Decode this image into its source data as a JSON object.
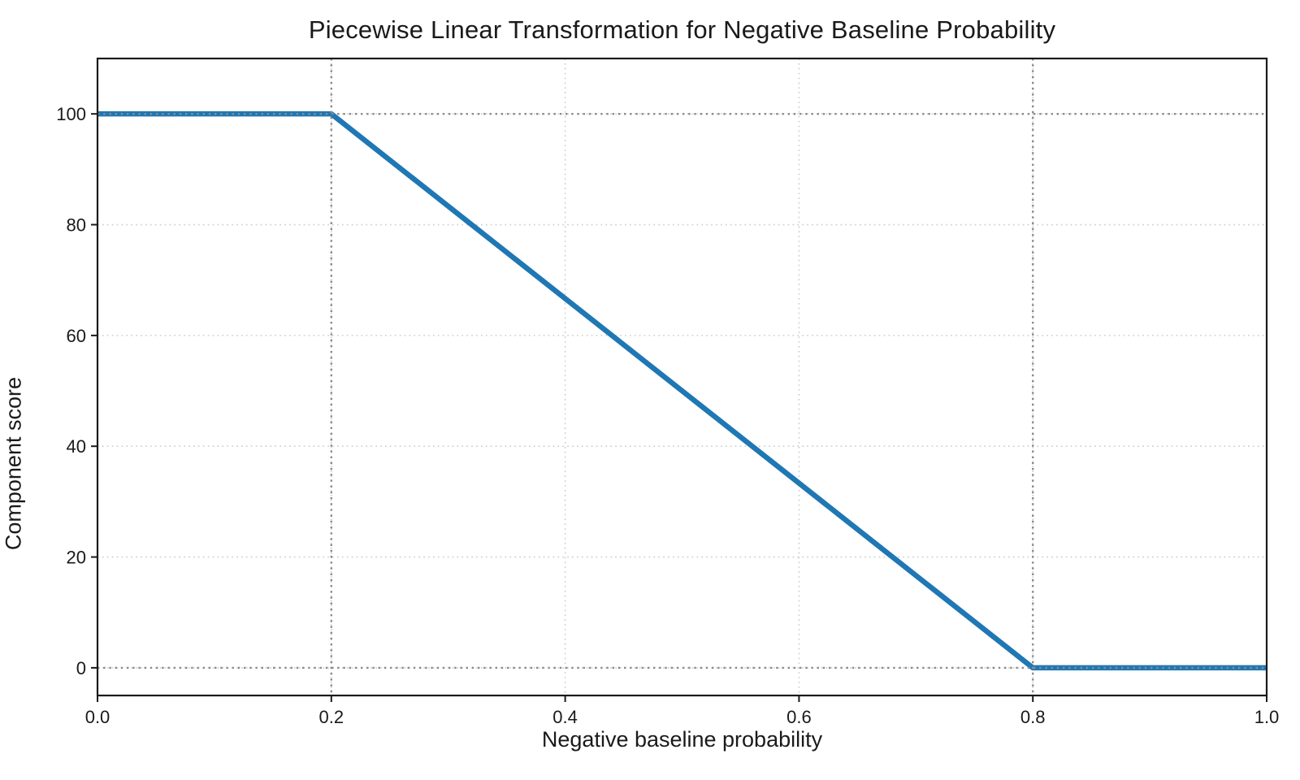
{
  "chart_data": {
    "type": "line",
    "title": "Piecewise Linear Transformation for Negative Baseline Probability",
    "xlabel": "Negative baseline probability",
    "ylabel": "Component score",
    "xlim": [
      0.0,
      1.0
    ],
    "ylim": [
      -5,
      110
    ],
    "x_ticks": [
      {
        "value": 0.0,
        "label": "0.0"
      },
      {
        "value": 0.2,
        "label": "0.2"
      },
      {
        "value": 0.4,
        "label": "0.4"
      },
      {
        "value": 0.6,
        "label": "0.6"
      },
      {
        "value": 0.8,
        "label": "0.8"
      },
      {
        "value": 1.0,
        "label": "1.0"
      }
    ],
    "y_ticks": [
      {
        "value": 0,
        "label": "0"
      },
      {
        "value": 20,
        "label": "20"
      },
      {
        "value": 40,
        "label": "40"
      },
      {
        "value": 60,
        "label": "60"
      },
      {
        "value": 80,
        "label": "80"
      },
      {
        "value": 100,
        "label": "100"
      }
    ],
    "grid": {
      "show": true,
      "linestyle": "dotted",
      "color": "#cdcdcd"
    },
    "threshold_lines": {
      "x": [
        0.2,
        0.8
      ],
      "y": [
        0,
        100
      ],
      "color": "#8b8b8b",
      "linestyle": "dotted"
    },
    "series": [
      {
        "name": "component_score",
        "color": "#1f77b4",
        "linewidth": 6.5,
        "points": [
          [
            0.0,
            100
          ],
          [
            0.2,
            100
          ],
          [
            0.8,
            0
          ],
          [
            1.0,
            0
          ]
        ]
      }
    ],
    "legend": "none",
    "background": "#ffffff",
    "text_color": "#1a1a1a"
  }
}
